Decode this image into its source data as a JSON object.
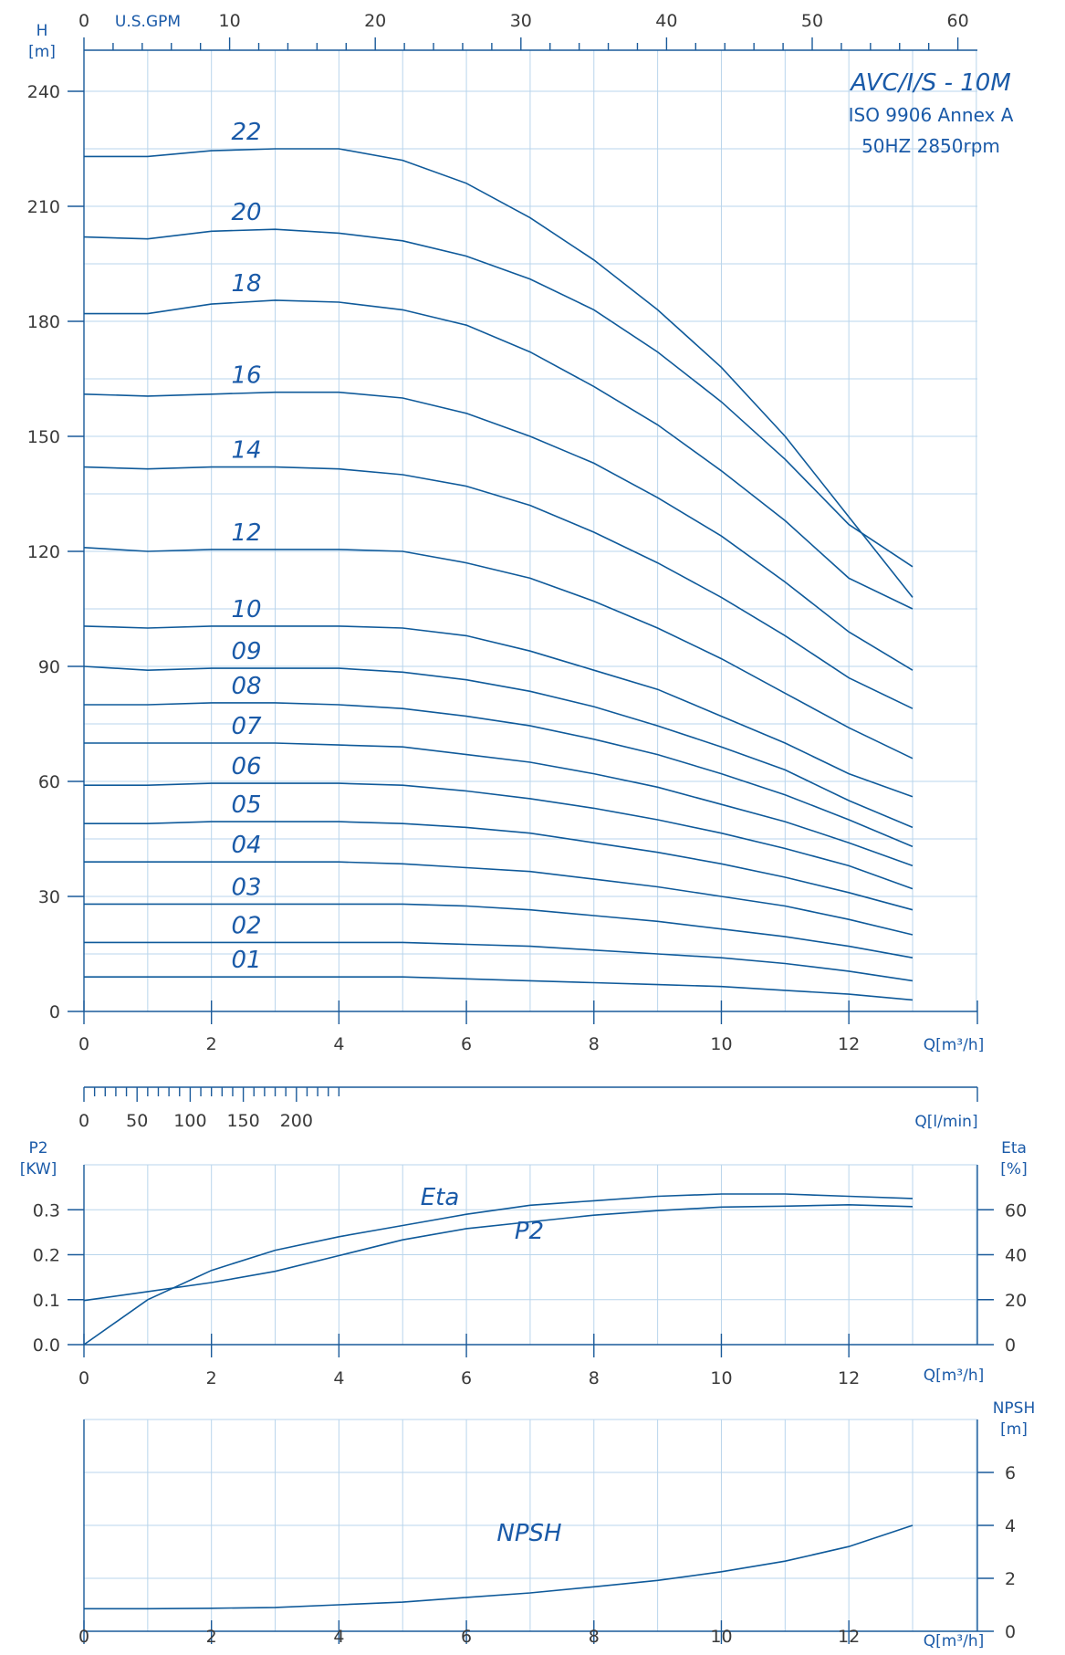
{
  "chart_data": [
    {
      "type": "line",
      "title": "AVC/I/S - 10M",
      "subtitle_lines": [
        "ISO 9906 Annex A",
        "50HZ 2850rpm"
      ],
      "ylabel": "H",
      "yunit": "[m]",
      "xlabel": "Q[m³/h]",
      "ylim": [
        0,
        240
      ],
      "yticks": [
        0,
        30,
        60,
        90,
        120,
        150,
        180,
        210,
        240
      ],
      "xlim": [
        0,
        14
      ],
      "xticks": [
        0,
        2,
        4,
        6,
        8,
        10,
        12
      ],
      "secondary_top_axis": {
        "label": "U.S.GPM",
        "ticks": [
          0,
          10,
          20,
          30,
          40,
          50,
          60
        ]
      },
      "secondary_bottom_axis": {
        "label": "Q[l/min]",
        "ticks": [
          0,
          50,
          100,
          150,
          200
        ]
      },
      "grid": true,
      "x": [
        0,
        1,
        2,
        3,
        4,
        5,
        6,
        7,
        8,
        9,
        10,
        11,
        12,
        13
      ],
      "series": [
        {
          "name": "22",
          "values": [
            223,
            223,
            224.5,
            225,
            225,
            222,
            216,
            207,
            196,
            183,
            168,
            150,
            129,
            108
          ]
        },
        {
          "name": "20",
          "values": [
            202,
            201.5,
            203.5,
            204,
            203,
            201,
            197,
            191,
            183,
            172,
            159,
            144,
            127,
            116
          ]
        },
        {
          "name": "18",
          "values": [
            182,
            182,
            184.5,
            185.5,
            185,
            183,
            179,
            172,
            163,
            153,
            141,
            128,
            113,
            105
          ]
        },
        {
          "name": "16",
          "values": [
            161,
            160.5,
            161,
            161.5,
            161.5,
            160,
            156,
            150,
            143,
            134,
            124,
            112,
            99,
            89
          ]
        },
        {
          "name": "14",
          "values": [
            142,
            141.5,
            142,
            142,
            141.5,
            140,
            137,
            132,
            125,
            117,
            108,
            98,
            87,
            79
          ]
        },
        {
          "name": "12",
          "values": [
            121,
            120,
            120.5,
            120.5,
            120.5,
            120,
            117,
            113,
            107,
            100,
            92,
            83,
            74,
            66
          ]
        },
        {
          "name": "10",
          "values": [
            100.5,
            100,
            100.5,
            100.5,
            100.5,
            100,
            98,
            94,
            89,
            84,
            77,
            70,
            62,
            56
          ]
        },
        {
          "name": "09",
          "values": [
            90,
            89,
            89.5,
            89.5,
            89.5,
            88.5,
            86.5,
            83.5,
            79.5,
            74.5,
            69,
            63,
            55,
            48
          ]
        },
        {
          "name": "08",
          "values": [
            80,
            80,
            80.5,
            80.5,
            80,
            79,
            77,
            74.5,
            71,
            67,
            62,
            56.5,
            50,
            43
          ]
        },
        {
          "name": "07",
          "values": [
            70,
            70,
            70,
            70,
            69.5,
            69,
            67,
            65,
            62,
            58.5,
            54,
            49.5,
            44,
            38
          ]
        },
        {
          "name": "06",
          "values": [
            59,
            59,
            59.5,
            59.5,
            59.5,
            59,
            57.5,
            55.5,
            53,
            50,
            46.5,
            42.5,
            38,
            32
          ]
        },
        {
          "name": "05",
          "values": [
            49,
            49,
            49.5,
            49.5,
            49.5,
            49,
            48,
            46.5,
            44,
            41.5,
            38.5,
            35,
            31,
            26.5
          ]
        },
        {
          "name": "04",
          "values": [
            39,
            39,
            39,
            39,
            39,
            38.5,
            37.5,
            36.5,
            34.5,
            32.5,
            30,
            27.5,
            24,
            20
          ]
        },
        {
          "name": "03",
          "values": [
            28,
            28,
            28,
            28,
            28,
            28,
            27.5,
            26.5,
            25,
            23.5,
            21.5,
            19.5,
            17,
            14
          ]
        },
        {
          "name": "02",
          "values": [
            18,
            18,
            18,
            18,
            18,
            18,
            17.5,
            17,
            16,
            15,
            14,
            12.5,
            10.5,
            8
          ]
        },
        {
          "name": "01",
          "values": [
            9,
            9,
            9,
            9,
            9,
            9,
            8.5,
            8,
            7.5,
            7,
            6.5,
            5.5,
            4.5,
            3
          ]
        }
      ]
    },
    {
      "type": "line",
      "ylabel_left": "P2",
      "yunit_left": "[KW]",
      "yticks_left": [
        "0.0",
        "0.1",
        "0.2",
        "0.3"
      ],
      "ylim_left": [
        0,
        0.4
      ],
      "ylabel_right": "Eta",
      "yunit_right": "[%]",
      "yticks_right": [
        0,
        20,
        40,
        60
      ],
      "ylim_right": [
        0,
        80
      ],
      "xlabel": "Q[m³/h]",
      "xlim": [
        0,
        14
      ],
      "xticks": [
        0,
        2,
        4,
        6,
        8,
        10,
        12
      ],
      "grid": true,
      "series": [
        {
          "name": "P2",
          "axis": "left",
          "x": [
            0,
            1,
            2,
            3,
            4,
            5,
            6,
            7,
            8,
            9,
            10,
            11,
            12,
            13
          ],
          "values": [
            0.098,
            0.118,
            0.138,
            0.163,
            0.198,
            0.233,
            0.258,
            0.273,
            0.288,
            0.298,
            0.306,
            0.308,
            0.311,
            0.307
          ]
        },
        {
          "name": "Eta",
          "axis": "right",
          "x": [
            0,
            1,
            2,
            3,
            4,
            5,
            6,
            7,
            8,
            9,
            10,
            11,
            12,
            13
          ],
          "values": [
            0,
            20,
            33,
            42,
            48,
            53,
            58,
            62,
            64,
            66,
            67,
            67,
            66,
            65
          ]
        }
      ]
    },
    {
      "type": "line",
      "ylabel_right": "NPSH",
      "yunit_right": "[m]",
      "yticks_right": [
        0,
        2,
        4,
        6
      ],
      "ylim_right": [
        0,
        8
      ],
      "xlabel": "Q[m³/h]",
      "xlim": [
        0,
        14
      ],
      "xticks": [
        0,
        2,
        4,
        6,
        8,
        10,
        12
      ],
      "grid": true,
      "series": [
        {
          "name": "NPSH",
          "x": [
            0,
            1,
            2,
            3,
            4,
            5,
            6,
            7,
            8,
            9,
            10,
            11,
            12,
            13
          ],
          "values": [
            0.85,
            0.85,
            0.87,
            0.9,
            1.0,
            1.1,
            1.28,
            1.45,
            1.68,
            1.92,
            2.25,
            2.65,
            3.2,
            4.0
          ]
        }
      ]
    }
  ]
}
